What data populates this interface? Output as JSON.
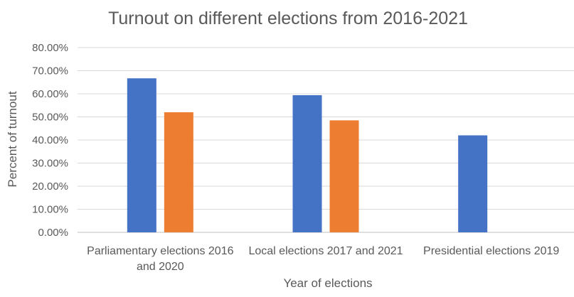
{
  "chart_data": {
    "type": "bar",
    "title": "Turnout on different elections from 2016-2021",
    "xlabel": "Year of elections",
    "ylabel": "Percent of turnout",
    "ylim": [
      0,
      0.8
    ],
    "yticks": [
      "0.00%",
      "10.00%",
      "20.00%",
      "30.00%",
      "40.00%",
      "50.00%",
      "60.00%",
      "70.00%",
      "80.00%"
    ],
    "grid": true,
    "legend": "none",
    "categories": [
      [
        "Parliamentary elections 2016",
        "and 2020"
      ],
      [
        "Local elections 2017 and 2021"
      ],
      [
        "Presidential elections 2019"
      ]
    ],
    "series": [
      {
        "color": "#4472c4",
        "values": [
          0.667,
          0.594,
          0.42
        ]
      },
      {
        "color": "#ed7d31",
        "values": [
          0.52,
          0.485,
          null
        ]
      }
    ]
  }
}
